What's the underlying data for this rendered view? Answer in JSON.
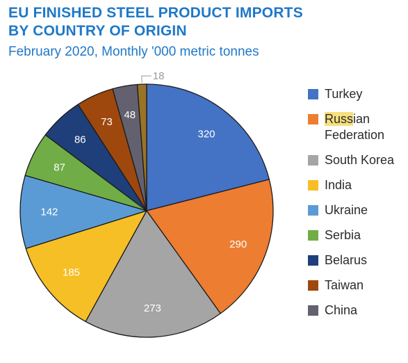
{
  "chart_data": {
    "type": "pie",
    "title": [
      "EU FINISHED STEEL PRODUCT IMPORTS",
      "BY COUNTRY OF ORIGIN"
    ],
    "subtitle": "February 2020, Monthly '000 metric tonnes",
    "series": [
      {
        "name": "Turkey",
        "value": 320,
        "color": "#4472c4"
      },
      {
        "name": "Russian Federation",
        "value": 290,
        "color": "#ed7d31"
      },
      {
        "name": "South Korea",
        "value": 273,
        "color": "#a5a5a5"
      },
      {
        "name": "India",
        "value": 185,
        "color": "#f6bf26"
      },
      {
        "name": "Ukraine",
        "value": 142,
        "color": "#5b9bd5"
      },
      {
        "name": "Serbia",
        "value": 87,
        "color": "#70ad47"
      },
      {
        "name": "Belarus",
        "value": 86,
        "color": "#1f3f7a"
      },
      {
        "name": "Taiwan",
        "value": 73,
        "color": "#9e480e"
      },
      {
        "name": "China",
        "value": 48,
        "color": "#636170"
      },
      {
        "name": "",
        "value": 18,
        "color": "#997326"
      }
    ],
    "legend": [
      {
        "label": "Turkey",
        "color": "#4472c4"
      },
      {
        "label_lines": [
          "Russian",
          "Federation"
        ],
        "highlight": "Russ",
        "color": "#ed7d31"
      },
      {
        "label": "South Korea",
        "color": "#a5a5a5"
      },
      {
        "label": "India",
        "color": "#f6bf26"
      },
      {
        "label": "Ukraine",
        "color": "#5b9bd5"
      },
      {
        "label": "Serbia",
        "color": "#70ad47"
      },
      {
        "label": "Belarus",
        "color": "#1f3f7a"
      },
      {
        "label": "Taiwan",
        "color": "#9e480e"
      },
      {
        "label": "China",
        "color": "#636170"
      }
    ],
    "legend_position": "right"
  }
}
